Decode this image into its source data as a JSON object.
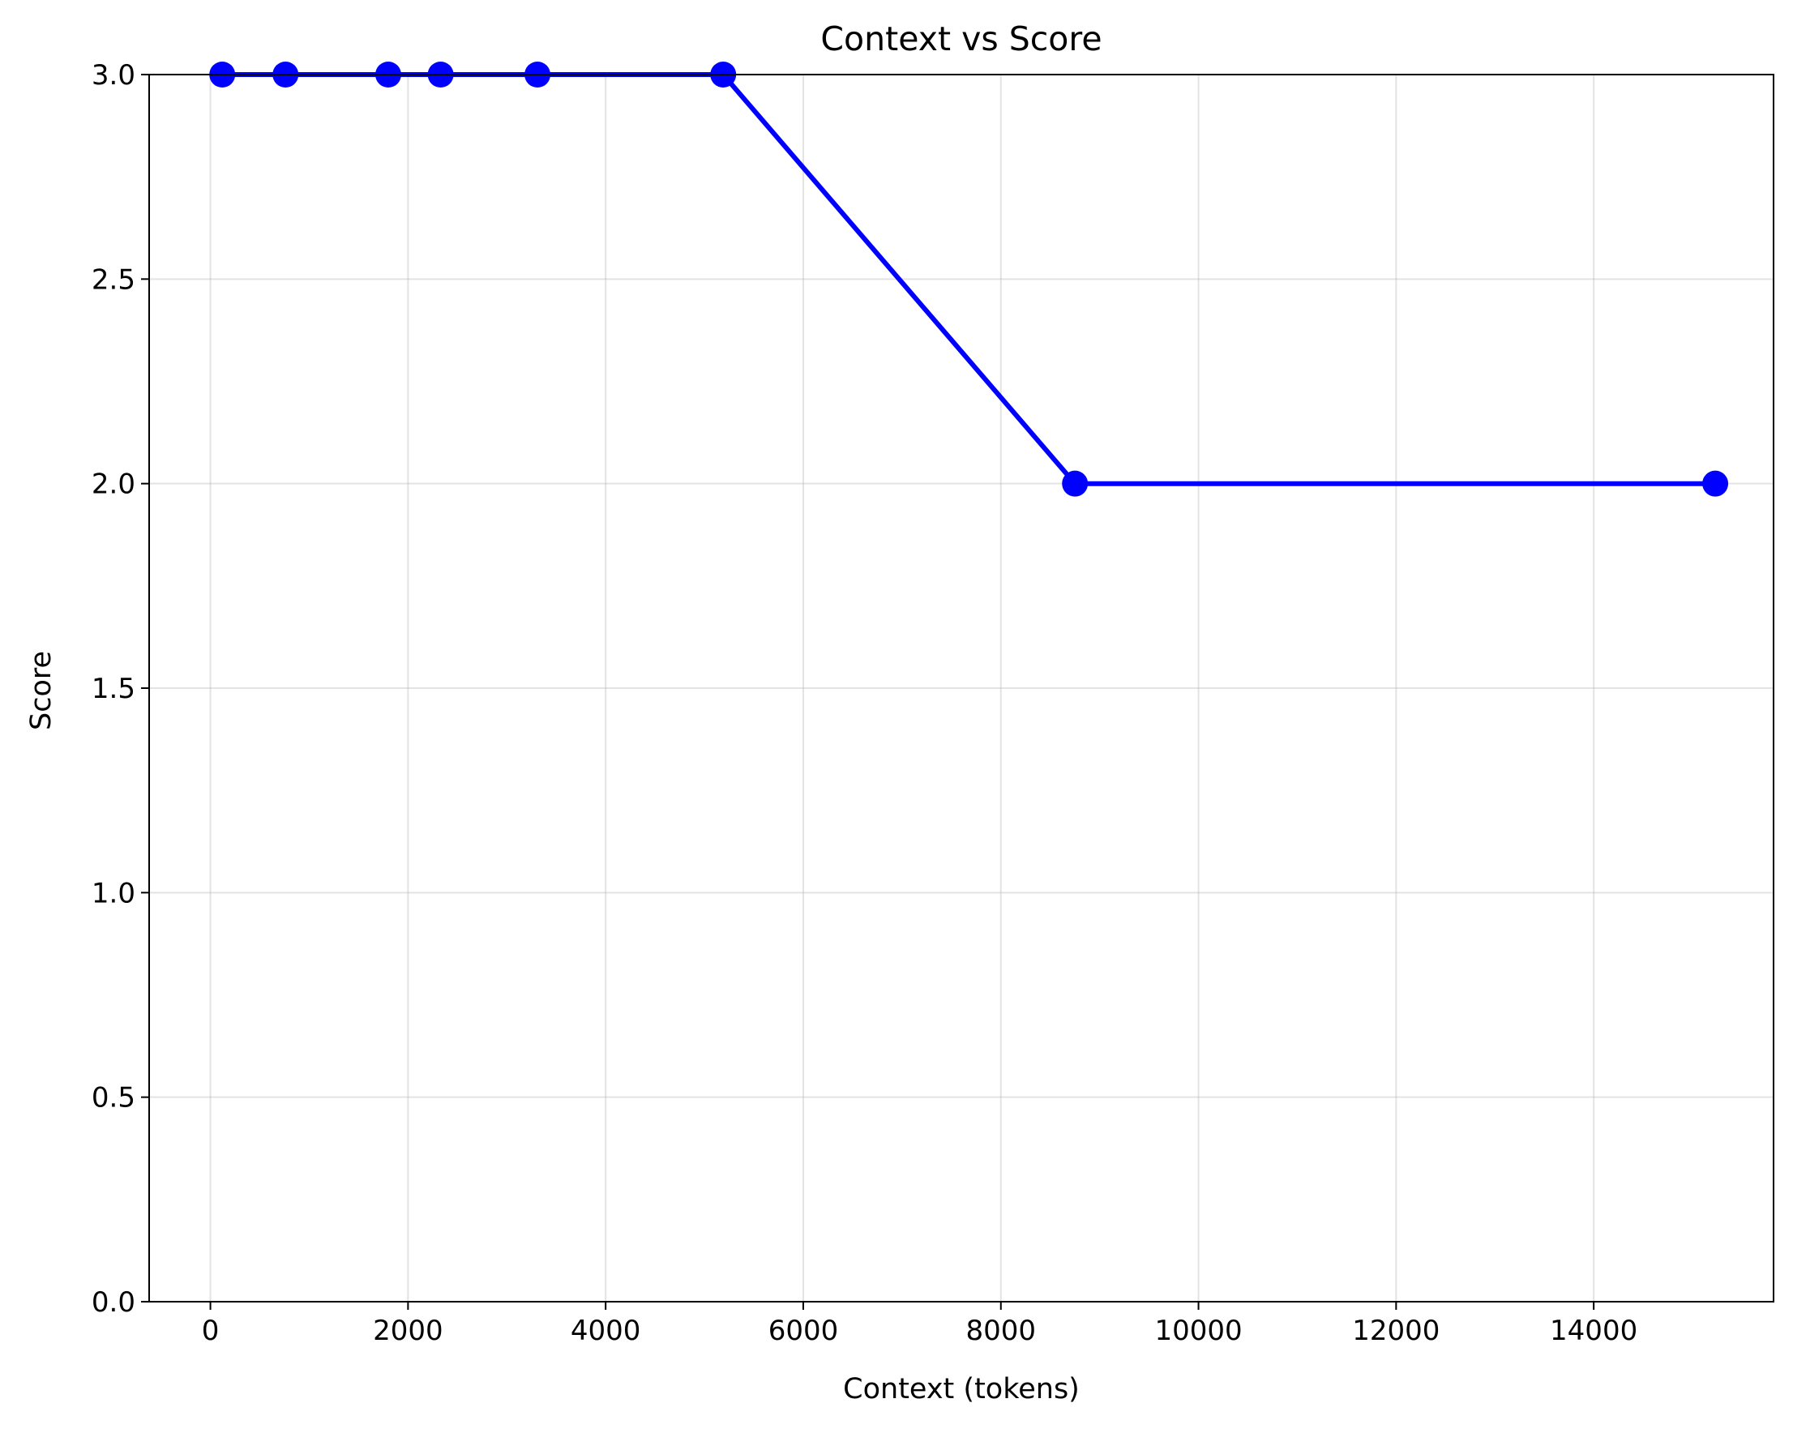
{
  "chart_data": {
    "type": "line",
    "title": "Context vs Score",
    "xlabel": "Context (tokens)",
    "ylabel": "Score",
    "xlim": [
      -620,
      15820
    ],
    "ylim": [
      0,
      3
    ],
    "xticks": [
      0,
      2000,
      4000,
      6000,
      8000,
      10000,
      12000,
      14000
    ],
    "xtick_labels": [
      "0",
      "2000",
      "4000",
      "6000",
      "8000",
      "10000",
      "12000",
      "14000"
    ],
    "yticks": [
      0,
      0.5,
      1,
      1.5,
      2,
      2.5,
      3
    ],
    "ytick_labels": [
      "0.0",
      "0.5",
      "1.0",
      "1.5",
      "2.0",
      "2.5",
      "3.0"
    ],
    "grid": true,
    "series": [
      {
        "color": "#0000ff",
        "marker": "circle",
        "x": [
          120,
          760,
          1800,
          2330,
          3310,
          5190,
          8750,
          15230
        ],
        "y": [
          3,
          3,
          3,
          3,
          3,
          3,
          2,
          2
        ]
      }
    ]
  }
}
